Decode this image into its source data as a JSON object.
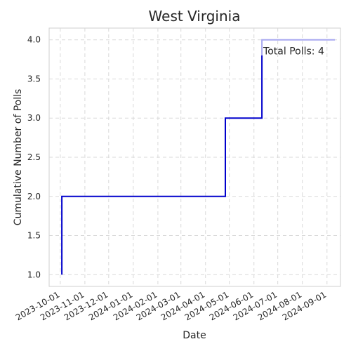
{
  "chart_data": {
    "type": "line",
    "step": true,
    "title": "West Virginia",
    "xlabel": "Date",
    "ylabel": "Cumulative Number of Polls",
    "x_type": "date",
    "xlim": [
      "2023-09-17",
      "2024-09-18"
    ],
    "ylim": [
      0.85,
      4.15
    ],
    "x_ticks": [
      "2023-10-01",
      "2023-11-01",
      "2023-12-01",
      "2024-01-01",
      "2024-02-01",
      "2024-03-01",
      "2024-04-01",
      "2024-05-01",
      "2024-06-01",
      "2024-07-01",
      "2024-08-01",
      "2024-09-01"
    ],
    "y_ticks": [
      "1.0",
      "1.5",
      "2.0",
      "2.5",
      "3.0",
      "3.5",
      "4.0"
    ],
    "grid": true,
    "series": [
      {
        "color": "#0000cc",
        "points": [
          {
            "x": "2023-10-03",
            "y": 1
          },
          {
            "x": "2023-10-03",
            "y": 2
          },
          {
            "x": "2024-04-26",
            "y": 2
          },
          {
            "x": "2024-04-26",
            "y": 3
          },
          {
            "x": "2024-06-11",
            "y": 3
          },
          {
            "x": "2024-06-11",
            "y": 3.8
          }
        ]
      },
      {
        "color": "#a8a8f0",
        "points": [
          {
            "x": "2024-06-11",
            "y": 3.8
          },
          {
            "x": "2024-06-11",
            "y": 4
          },
          {
            "x": "2024-09-11",
            "y": 4
          }
        ]
      }
    ],
    "annotation": {
      "text": "Total Polls: 4",
      "x": "2024-06-11",
      "y": 3.95
    }
  }
}
